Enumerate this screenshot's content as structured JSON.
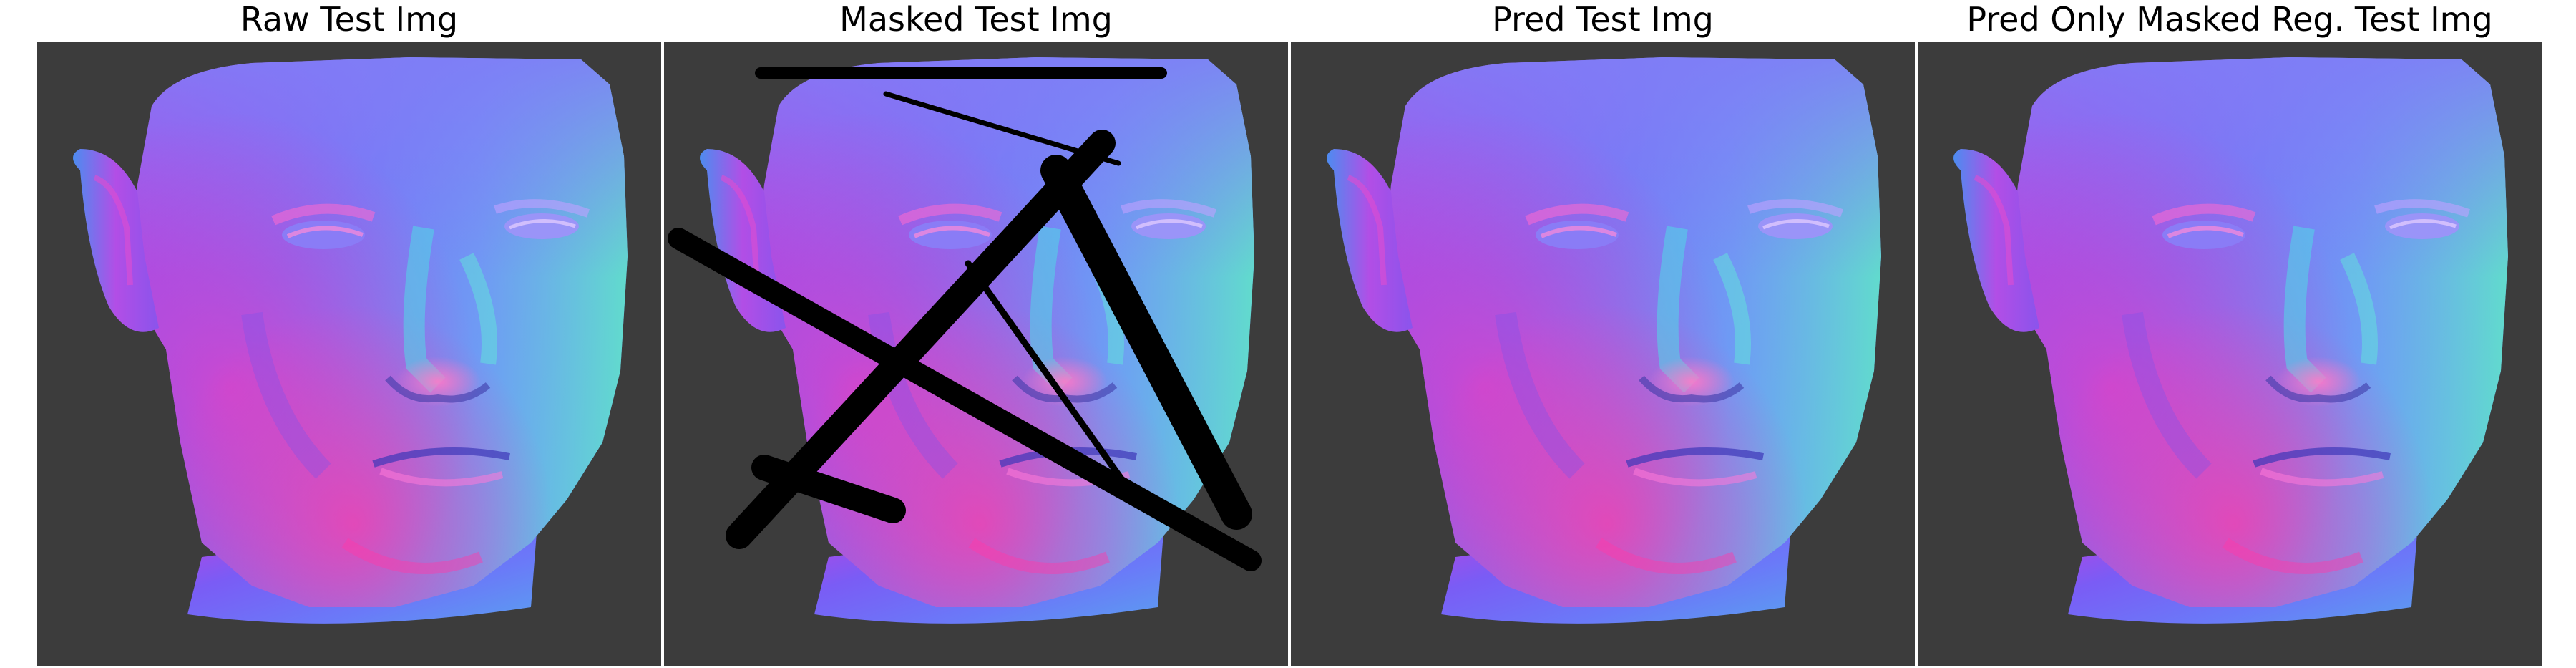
{
  "panels": [
    {
      "title": "Raw Test Img"
    },
    {
      "title": "Masked Test Img"
    },
    {
      "title": "Pred Test Img"
    },
    {
      "title": "Pred Only Masked Reg. Test Img"
    }
  ],
  "colors": {
    "background": "#3c3c3c",
    "mask_stroke": "#000000"
  }
}
